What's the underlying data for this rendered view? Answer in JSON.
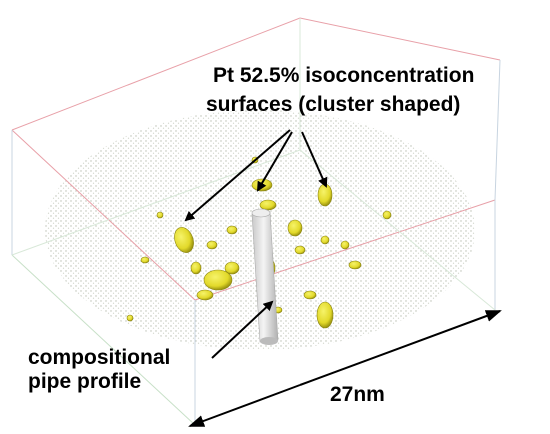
{
  "annotations": {
    "surfaces": {
      "lines": [
        "Pt 52.5% isoconcentration",
        "surfaces (cluster shaped)"
      ]
    },
    "pipe": {
      "lines": [
        "compositional",
        "pipe profile"
      ]
    },
    "scale": "27nm"
  }
}
